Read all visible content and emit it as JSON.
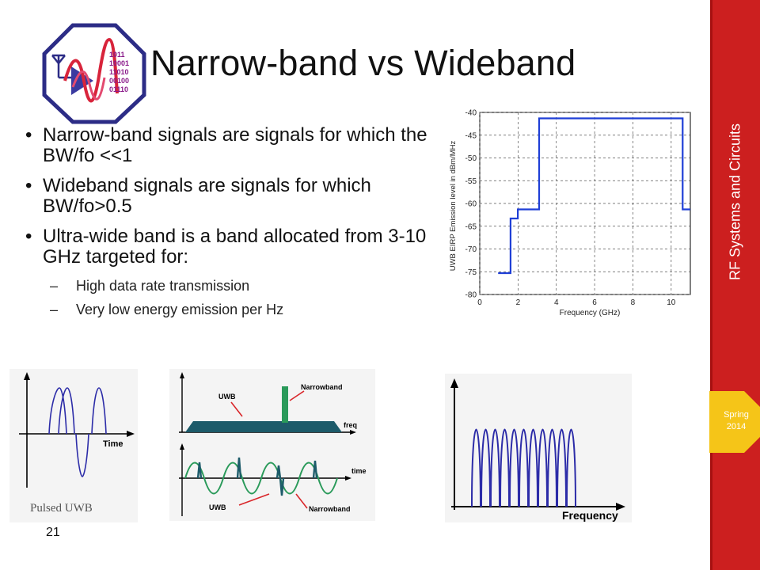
{
  "title": "Narrow-band vs Wideband",
  "bullets": [
    {
      "text": "Narrow-band signals are signals for which the BW/fo <<1",
      "subitems": []
    },
    {
      "text": "Wideband signals are signals for which BW/fo>0.5",
      "subitems": []
    },
    {
      "text": "Ultra-wide band is a band allocated from 3-10 GHz targeted for:",
      "subitems": [
        "High data rate transmission",
        "Very low energy emission per Hz"
      ]
    }
  ],
  "sidebar": {
    "title": "RF Systems and Circuits",
    "semester_line1": "Spring",
    "semester_line2": "2014"
  },
  "page_number": "21",
  "logo": {
    "bits": [
      "1011",
      "10001",
      "11010",
      "00100",
      "01110"
    ]
  },
  "colors": {
    "sidebar": "#cc1f1f",
    "badge": "#f5c518",
    "trace": "#1f3fd6"
  },
  "figures": {
    "pulsed": {
      "time_label": "Time",
      "caption": "Pulsed UWB"
    },
    "spectrum": {
      "uwb_label": "UWB",
      "narrow_label": "Narrowband",
      "freq_label": "freq",
      "time_label": "time",
      "uwb_label_2": "UWB",
      "narrow_label_2": "Narrowband"
    },
    "multiband": {
      "freq_label": "Frequency"
    }
  },
  "chart_data": {
    "type": "line",
    "xlabel": "Frequency (GHz)",
    "ylabel": "UWB EIRP Emission level in dBm/MHz",
    "xlim": [
      0,
      11
    ],
    "ylim": [
      -80,
      -40
    ],
    "xticks": [
      "0",
      "2",
      "4",
      "6",
      "8",
      "10"
    ],
    "yticks": [
      "-40",
      "-45",
      "-50",
      "-55",
      "-60",
      "-65",
      "-70",
      "-75",
      "-80"
    ],
    "grid": true,
    "series": [
      {
        "x": [
          0.96,
          1.61,
          1.61,
          1.99,
          1.99,
          3.1,
          3.1,
          10.6,
          10.6,
          11
        ],
        "y": [
          -75.3,
          -75.3,
          -63.3,
          -63.3,
          -61.3,
          -61.3,
          -41.3,
          -41.3,
          -61.3,
          -61.3
        ]
      }
    ]
  }
}
